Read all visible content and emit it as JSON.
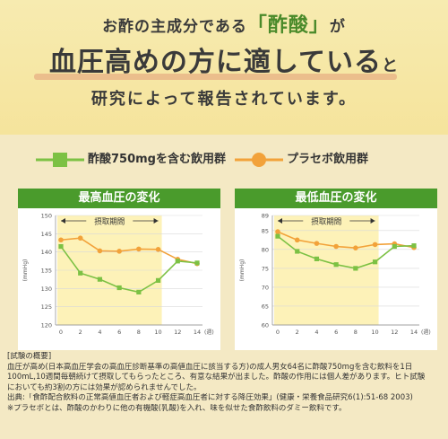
{
  "header": {
    "line1_pre": "お酢の主成分である",
    "line1_accent": "「酢酸」",
    "line1_post": "が",
    "line2_main": "血圧高めの方に適している",
    "line2_tail": "と",
    "line3": "研究によって報告されています。"
  },
  "legend": {
    "green": "酢酸750mgを含む飲用群",
    "orange": "プラセボ飲用群"
  },
  "colors": {
    "green": "#7cc144",
    "orange": "#f2a23a",
    "title_bg": "#4a9b2c",
    "period_bg": "#fdf2b8"
  },
  "chart_data": [
    {
      "type": "line",
      "title": "最高血圧の変化",
      "ylabel": "(mmHg)",
      "xunit": "(週)",
      "period_label": "摂取期間",
      "period_range": [
        0,
        10
      ],
      "x": [
        0,
        2,
        4,
        6,
        8,
        10,
        12,
        14
      ],
      "ylim": [
        120,
        150
      ],
      "yticks": [
        120,
        125,
        130,
        135,
        140,
        145,
        150
      ],
      "series": [
        {
          "name": "酢酸750mgを含む飲用群",
          "color": "green",
          "values": [
            141.5,
            134.2,
            132.5,
            130.2,
            129.0,
            132.2,
            137.5,
            137.0
          ]
        },
        {
          "name": "プラセボ飲用群",
          "color": "orange",
          "values": [
            143.3,
            143.8,
            140.3,
            140.2,
            140.8,
            140.7,
            138.0,
            136.8
          ]
        }
      ]
    },
    {
      "type": "line",
      "title": "最低血圧の変化",
      "ylabel": "(mmHg)",
      "xunit": "(週)",
      "period_label": "摂取期間",
      "period_range": [
        0,
        10
      ],
      "x": [
        0,
        2,
        4,
        6,
        8,
        10,
        12,
        14
      ],
      "ylim": [
        60,
        89
      ],
      "yticks": [
        60,
        65,
        70,
        75,
        80,
        85,
        89
      ],
      "series": [
        {
          "name": "酢酸750mgを含む飲用群",
          "color": "green",
          "values": [
            83.5,
            79.5,
            77.5,
            76.0,
            75.0,
            76.7,
            80.8,
            81.0
          ]
        },
        {
          "name": "プラセボ飲用群",
          "color": "orange",
          "values": [
            84.7,
            82.5,
            81.6,
            80.8,
            80.4,
            81.3,
            81.5,
            80.5
          ]
        }
      ]
    }
  ],
  "notes": [
    "[試験の概要]",
    "血圧が高め(日本高血圧学会の高血圧診断基準の高値血圧に該当する方)の成人男女64名に酢酸750mgを含む飲料を1日",
    "100mL,10週間毎朝続けて摂取してもらったところ、有意な結果が出ました。酢酸の作用には個人差があります。ヒト試験",
    "においても約3割の方には効果が認められませんでした。",
    "出典:「食酢配合飲料の正常高値血圧者および軽症高血圧者に対する降圧効果」(健康・栄養食品研究6(1):51-68 2003)",
    "※プラセボとは、酢酸のかわりに他の有機酸(乳酸)を入れ、味を似せた食酢飲料のダミー飲料です。"
  ]
}
